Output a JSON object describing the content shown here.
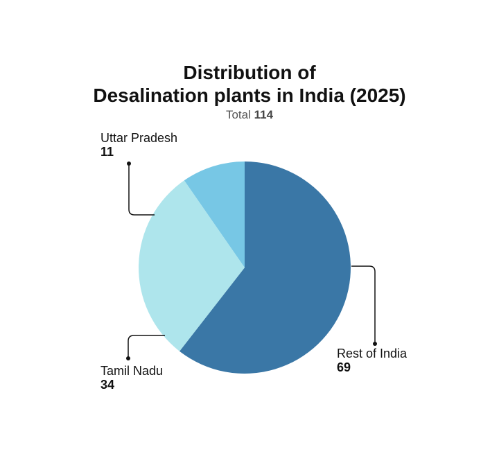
{
  "title_line1": "Distribution of",
  "title_line2": "Desalination plants in India (2025)",
  "subtitle_prefix": "Total",
  "subtitle_total": "114",
  "chart_data": {
    "type": "pie",
    "title": "Distribution of Desalination plants in India (2025)",
    "subtitle": "Total 114",
    "total": 114,
    "slices": [
      {
        "label": "Rest of India",
        "value": 69,
        "color": "#3A77A6"
      },
      {
        "label": "Tamil Nadu",
        "value": 34,
        "color": "#AEE5EC"
      },
      {
        "label": "Uttar Pradesh",
        "value": 11,
        "color": "#77C7E5"
      }
    ]
  }
}
